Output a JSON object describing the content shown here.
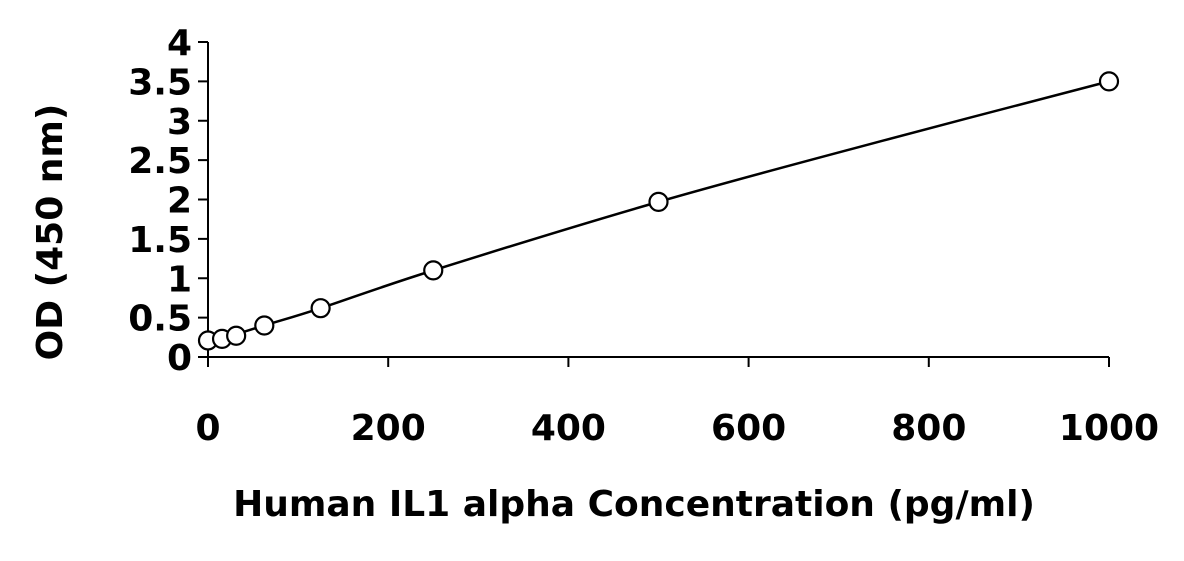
{
  "chart_data": {
    "type": "scatter",
    "title": "",
    "xlabel": "Human IL1 alpha Concentration (pg/ml)",
    "ylabel": "OD (450 nm)",
    "xlim": [
      0,
      1000
    ],
    "ylim": [
      0,
      4
    ],
    "x_ticks": [
      0,
      200,
      400,
      600,
      800,
      1000
    ],
    "y_ticks": [
      0,
      0.5,
      1,
      1.5,
      2,
      2.5,
      3,
      3.5,
      4
    ],
    "x_tick_labels": [
      "0",
      "200",
      "400",
      "600",
      "800",
      "1000"
    ],
    "y_tick_labels": [
      "0",
      "0.5",
      "1",
      "1.5",
      "2",
      "2.5",
      "3",
      "3.5",
      "4"
    ],
    "grid": false,
    "legend": "none",
    "series": [
      {
        "marker": "open-circle",
        "points": [
          {
            "x": 0,
            "y": 0.21
          },
          {
            "x": 15.6,
            "y": 0.23
          },
          {
            "x": 31.25,
            "y": 0.27
          },
          {
            "x": 62.5,
            "y": 0.4
          },
          {
            "x": 125,
            "y": 0.62
          },
          {
            "x": 250,
            "y": 1.1
          },
          {
            "x": 500,
            "y": 1.97
          },
          {
            "x": 1000,
            "y": 3.5
          }
        ]
      }
    ],
    "fit_line": {
      "style": "smooth",
      "points": [
        {
          "x": 0,
          "y": 0.18
        },
        {
          "x": 62.5,
          "y": 0.4
        },
        {
          "x": 125,
          "y": 0.62
        },
        {
          "x": 250,
          "y": 1.1
        },
        {
          "x": 500,
          "y": 1.97
        },
        {
          "x": 750,
          "y": 2.75
        },
        {
          "x": 1000,
          "y": 3.5
        }
      ]
    },
    "colors": {
      "axis": "#000000",
      "line": "#000000",
      "marker_fill": "#ffffff"
    }
  }
}
